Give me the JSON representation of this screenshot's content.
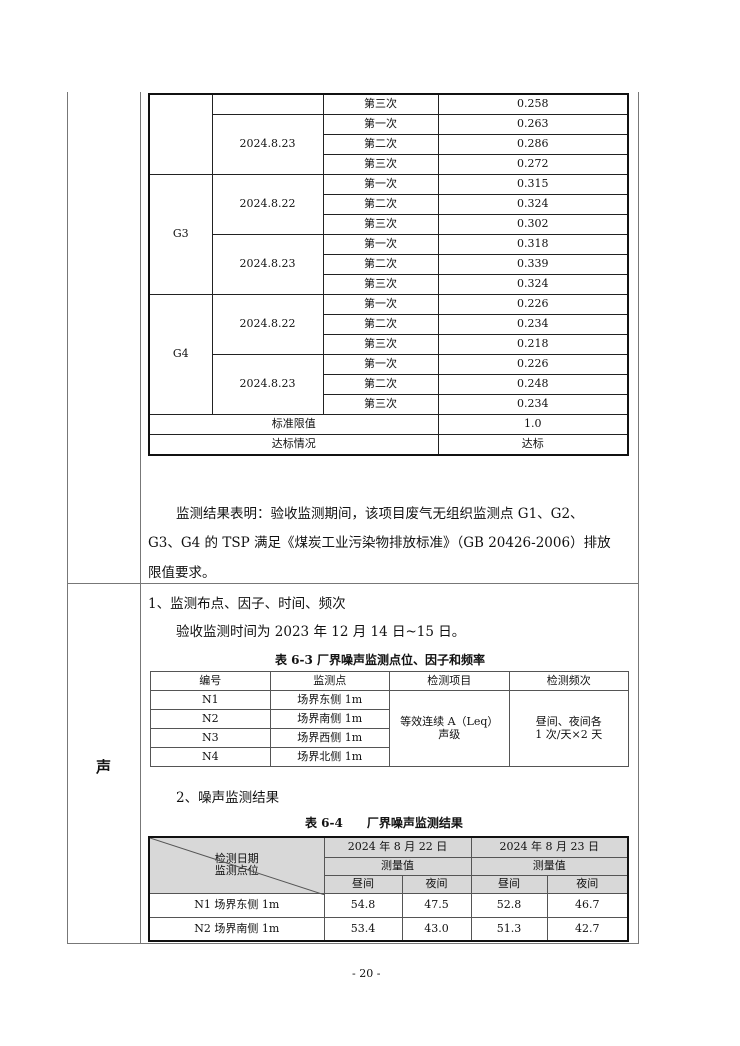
{
  "table_g": {
    "rows": [
      {
        "point": "",
        "date": "",
        "times": "第三次",
        "value": "0.258"
      },
      {
        "date": "2024.8.23",
        "times": [
          "第一次",
          "第二次",
          "第三次"
        ],
        "values": [
          "0.263",
          "0.286",
          "0.272"
        ]
      }
    ],
    "g3": {
      "point": "G3",
      "d1": "2024.8.22",
      "v1": [
        "0.315",
        "0.324",
        "0.302"
      ],
      "d2": "2024.8.23",
      "v2": [
        "0.318",
        "0.339",
        "0.324"
      ]
    },
    "g4": {
      "point": "G4",
      "d1": "2024.8.22",
      "v1": [
        "0.226",
        "0.234",
        "0.218"
      ],
      "d2": "2024.8.23",
      "v2": [
        "0.226",
        "0.248",
        "0.234"
      ]
    },
    "times": [
      "第一次",
      "第二次",
      "第三次"
    ],
    "limit_label": "标准限值",
    "limit_value": "1.0",
    "status_label": "达标情况",
    "status_value": "达标"
  },
  "conclusion": [
    "监测结果表明：验收监测期间，该项目废气无组织监测点 G1、G2、",
    "G3、G4 的 TSP 满足《煤炭工业污染物排放标准》（GB 20426-2006）排放",
    "限值要求。"
  ],
  "noise": {
    "section_label": "声",
    "heading1": "1、监测布点、因子、时间、频次",
    "time_text": "验收监测时间为 2023 年 12 月 14 日~15 日。",
    "table3_caption": "表 6-3 厂界噪声监测点位、因子和频率",
    "table3_headers": [
      "编号",
      "监测点",
      "检测项目",
      "检测频次"
    ],
    "table3_rows": [
      [
        "N1",
        "场界东侧 1m"
      ],
      [
        "N2",
        "场界南侧 1m"
      ],
      [
        "N3",
        "场界西侧 1m"
      ],
      [
        "N4",
        "场界北侧 1m"
      ]
    ],
    "table3_item": [
      "等效连续 A（Leq）",
      "声级"
    ],
    "table3_freq": [
      "昼间、夜间各",
      "1 次/天×2 天"
    ],
    "heading2": "2、噪声监测结果",
    "table4_caption": "表 6-4　　厂界噪声监测结果",
    "table4_corner": [
      "检测日期",
      "监测点位"
    ],
    "table4_dates": [
      "2024 年 8 月 22 日",
      "2024 年 8 月 23 日"
    ],
    "table4_measure": "测量值",
    "table4_day": "昼间",
    "table4_night": "夜间",
    "table4_rows": [
      [
        "N1 场界东侧 1m",
        "54.8",
        "47.5",
        "52.8",
        "46.7"
      ],
      [
        "N2 场界南侧 1m",
        "53.4",
        "43.0",
        "51.3",
        "42.7"
      ]
    ]
  },
  "page_number": "- 20 -"
}
